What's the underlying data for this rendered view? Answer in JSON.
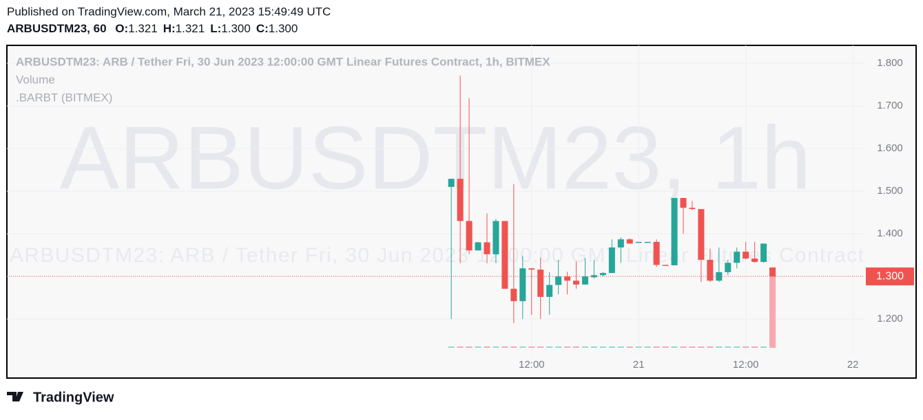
{
  "header": {
    "published": "Published on TradingView.com, March 21, 2023 15:49:49 UTC",
    "symbol": "ARBUSDTM23, 60",
    "ohlc": [
      {
        "label": "O:",
        "value": "1.321"
      },
      {
        "label": "H:",
        "value": "1.321"
      },
      {
        "label": "L:",
        "value": "1.300"
      },
      {
        "label": "C:",
        "value": "1.300"
      }
    ]
  },
  "footer": {
    "brand": "TradingView"
  },
  "chart_data": {
    "type": "candlestick",
    "legend": [
      "ARBUSDTM23: ARB / Tether Fri, 30 Jun 2023 12:00:00 GMT Linear Futures Contract, 1h, BITMEX",
      "Volume",
      ".BARBT (BITMEX)"
    ],
    "watermark": "ARBUSDTM23, 1h",
    "watermark_description": "ARBUSDTM23: ARB / Tether Fri, 30 Jun 2023 12:00:00 GMT Linear Futures Contract",
    "up_color": "#26a69a",
    "down_color": "#ef5350",
    "up_volume_color": "#9ad8d1",
    "down_volume_color": "#f7a9b2",
    "x": [
      3,
      4,
      5,
      6,
      7,
      8,
      9,
      10,
      11,
      12,
      13,
      14,
      15,
      16,
      17,
      18,
      19,
      20,
      21,
      22,
      23,
      24,
      25,
      26,
      27,
      28,
      29,
      30,
      31,
      32,
      33,
      34,
      35,
      36,
      37,
      38,
      39
    ],
    "series": [
      {
        "name": "ARBUSDTM23",
        "open": [
          1.51,
          1.529,
          1.43,
          1.361,
          1.38,
          1.352,
          1.43,
          1.271,
          1.242,
          1.319,
          1.316,
          1.252,
          1.28,
          1.3,
          1.29,
          1.281,
          1.298,
          1.303,
          1.308,
          1.368,
          1.387,
          1.381,
          1.381,
          1.381,
          1.327,
          1.326,
          1.484,
          1.461,
          1.458,
          1.339,
          1.29,
          1.31,
          1.332,
          1.358,
          1.342,
          1.334,
          1.321
        ],
        "high": [
          1.529,
          1.771,
          1.718,
          1.381,
          1.448,
          1.435,
          1.43,
          1.516,
          1.348,
          1.319,
          1.344,
          1.31,
          1.339,
          1.311,
          1.335,
          1.343,
          1.339,
          1.31,
          1.387,
          1.392,
          1.389,
          1.381,
          1.381,
          1.387,
          1.327,
          1.484,
          1.484,
          1.477,
          1.458,
          1.365,
          1.368,
          1.339,
          1.368,
          1.381,
          1.381,
          1.377,
          1.321
        ],
        "low": [
          1.2,
          1.331,
          1.352,
          1.361,
          1.331,
          1.331,
          1.271,
          1.19,
          1.2,
          1.21,
          1.2,
          1.21,
          1.258,
          1.258,
          1.271,
          1.281,
          1.295,
          1.3,
          1.308,
          1.332,
          1.377,
          1.381,
          1.381,
          1.322,
          1.326,
          1.326,
          1.4,
          1.456,
          1.287,
          1.287,
          1.287,
          1.303,
          1.319,
          1.34,
          1.332,
          1.332,
          1.3
        ],
        "close": [
          1.529,
          1.43,
          1.361,
          1.38,
          1.352,
          1.43,
          1.271,
          1.242,
          1.319,
          1.316,
          1.252,
          1.28,
          1.3,
          1.29,
          1.281,
          1.3,
          1.303,
          1.308,
          1.368,
          1.387,
          1.377,
          1.381,
          1.381,
          1.327,
          1.326,
          1.484,
          1.461,
          1.458,
          1.339,
          1.29,
          1.31,
          1.332,
          1.358,
          1.342,
          1.334,
          1.377,
          1.3
        ],
        "volume": [
          1,
          1,
          1,
          1,
          1,
          1,
          1,
          1,
          1,
          1,
          1,
          1,
          1,
          1,
          1,
          1,
          1,
          1,
          1,
          1,
          1,
          1,
          1,
          1,
          1,
          1,
          1,
          1,
          1,
          1,
          1,
          1,
          1,
          1,
          1,
          1,
          54
        ]
      }
    ],
    "last_price": {
      "value": 1.3,
      "label": "1.300"
    },
    "xlim": [
      -46.8,
      49.3
    ],
    "xticks": [
      {
        "value": 12,
        "label": "12:00"
      },
      {
        "value": 24,
        "label": "21"
      },
      {
        "value": 36,
        "label": "12:00"
      },
      {
        "value": 48,
        "label": "22"
      }
    ],
    "ylim": [
      1.118,
      1.842
    ],
    "yticks": [
      {
        "value": 1.2,
        "label": "1.200"
      },
      {
        "value": 1.3,
        "label": "1.300"
      },
      {
        "value": 1.4,
        "label": "1.400"
      },
      {
        "value": 1.5,
        "label": "1.500"
      },
      {
        "value": 1.6,
        "label": "1.600"
      },
      {
        "value": 1.7,
        "label": "1.700"
      },
      {
        "value": 1.8,
        "label": "1.800"
      }
    ],
    "grid": true
  }
}
